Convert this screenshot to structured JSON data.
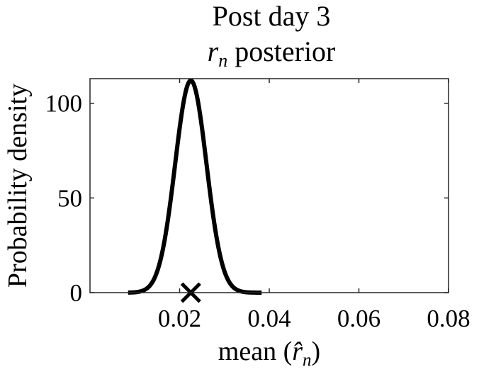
{
  "chart_data": {
    "type": "line",
    "title_line1": "Post day 3",
    "title_line2_var": "r",
    "title_line2_sub": "n",
    "title_line2_rest": " posterior",
    "xlabel_prefix": "mean (",
    "xlabel_var": "r̂",
    "xlabel_sub": "n",
    "xlabel_suffix": ")",
    "ylabel": "Probability density",
    "xlim": [
      0,
      0.08
    ],
    "ylim": [
      0,
      113
    ],
    "x_ticks": [
      {
        "value": 0.02,
        "label": "0.02"
      },
      {
        "value": 0.04,
        "label": "0.04"
      },
      {
        "value": 0.06,
        "label": "0.06"
      },
      {
        "value": 0.08,
        "label": "0.08"
      }
    ],
    "y_ticks": [
      {
        "value": 0,
        "label": "0"
      },
      {
        "value": 50,
        "label": "50"
      },
      {
        "value": 100,
        "label": "100"
      }
    ],
    "series": [
      {
        "color": "#000000",
        "distribution": {
          "x_range": [
            0.0085,
            0.0383
          ],
          "mean": 0.0225,
          "sd": 0.0035,
          "peak": 112
        }
      }
    ],
    "marker": {
      "type": "x",
      "x": 0.0225,
      "y": 0,
      "color": "#000000"
    },
    "grid": false
  }
}
